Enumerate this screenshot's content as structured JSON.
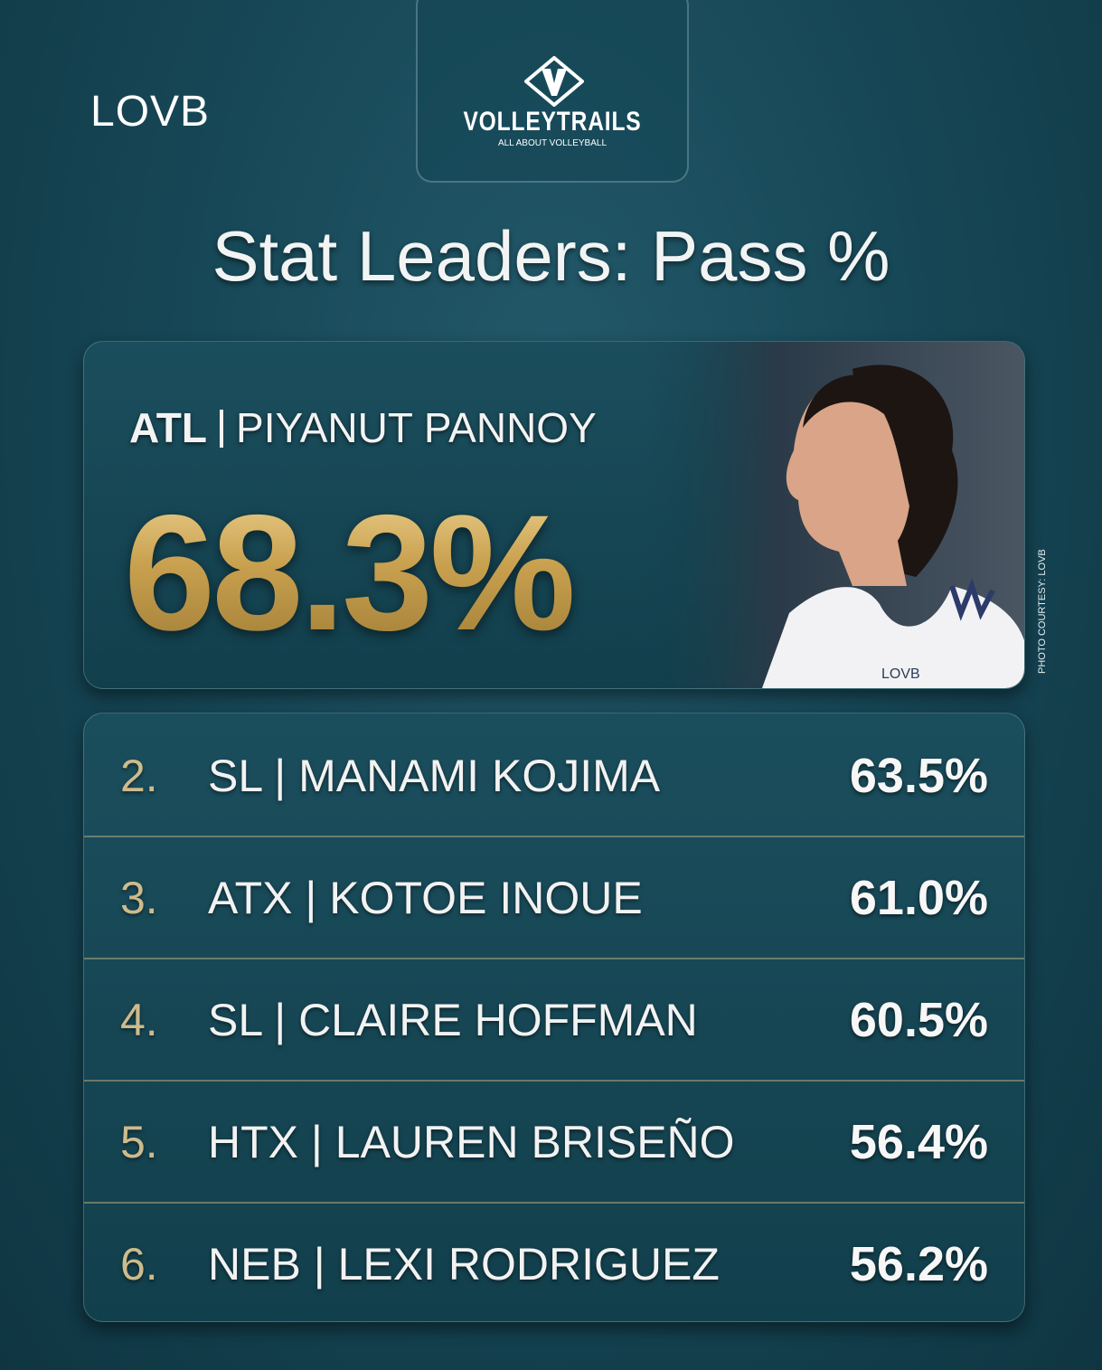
{
  "brand": {
    "left_logo": "LOVB",
    "center_logo": "VOLLEYTRAILS",
    "center_tagline": "ALL ABOUT VOLLEYBALL"
  },
  "header": {
    "title": "Stat Leaders: Pass %"
  },
  "leader": {
    "team": "ATL",
    "name": "PIYANUT PANNOY",
    "value": "68.3%",
    "jersey_text": "LOVB",
    "photo_credit": "PHOTO COURTESY: LOVB"
  },
  "rows": [
    {
      "rank": "2.",
      "player": "SL | MANAMI KOJIMA",
      "value": "63.5%"
    },
    {
      "rank": "3.",
      "player": "ATX | KOTOE INOUE",
      "value": "61.0%"
    },
    {
      "rank": "4.",
      "player": "SL | CLAIRE HOFFMAN",
      "value": "60.5%"
    },
    {
      "rank": "5.",
      "player": "HTX | LAUREN BRISEÑO",
      "value": "56.4%"
    },
    {
      "rank": "6.",
      "player": "NEB | LEXI RODRIGUEZ",
      "value": "56.2%"
    }
  ]
}
